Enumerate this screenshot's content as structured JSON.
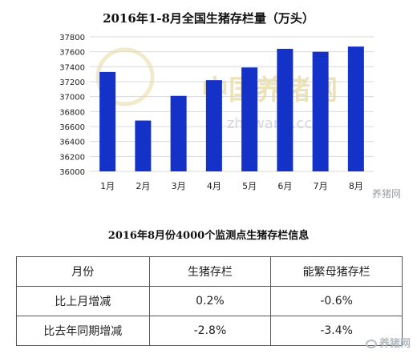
{
  "chart_data": {
    "type": "bar",
    "title": "2016年1-8月全国生猪存栏量（万头）",
    "categories": [
      "1月",
      "2月",
      "3月",
      "4月",
      "5月",
      "6月",
      "7月",
      "8月"
    ],
    "values": [
      37330,
      36680,
      37010,
      37220,
      37390,
      37640,
      37600,
      37670
    ],
    "yticks": [
      36000,
      36200,
      36400,
      36600,
      36800,
      37000,
      37200,
      37400,
      37600,
      37800
    ],
    "ylim": [
      36000,
      37800
    ],
    "bar_color": "#1432c8",
    "grid": true,
    "legend": "none"
  },
  "watermarks": {
    "chart_logo": "中国养猪网",
    "chart_url": "zhuwang.cc",
    "site": "养猪网",
    "bottom": "养猪网"
  },
  "table": {
    "title": "2016年8月份4000个监测点生猪存栏信息",
    "headers": [
      "月份",
      "生猪存栏",
      "能繁母猪存栏"
    ],
    "rows": [
      [
        "比上月增减",
        "0.2%",
        "-0.6%"
      ],
      [
        "比去年同期增减",
        "-2.8%",
        "-3.4%"
      ]
    ]
  },
  "colors": {
    "grid_line": "#d9d9d9",
    "axis": "#999999",
    "watermark": "#e6d9a0"
  }
}
